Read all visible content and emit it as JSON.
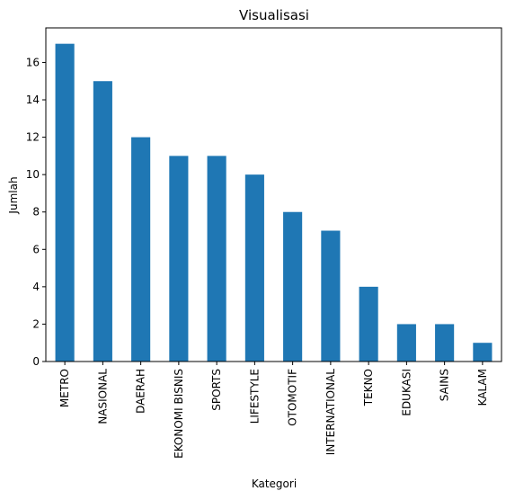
{
  "chart_data": {
    "type": "bar",
    "title": "Visualisasi",
    "xlabel": "Kategori",
    "ylabel": "Jumlah",
    "categories": [
      "METRO",
      "NASIONAL",
      "DAERAH",
      "EKONOMI BISNIS",
      "SPORTS",
      "LIFESTYLE",
      "OTOMOTIF",
      "INTERNATIONAL",
      "TEKNO",
      "EDUKASI",
      "SAINS",
      "KALAM"
    ],
    "values": [
      17,
      15,
      12,
      11,
      11,
      10,
      8,
      7,
      4,
      2,
      2,
      1
    ],
    "ylim": [
      0,
      17.85
    ],
    "yticks": [
      0,
      2,
      4,
      6,
      8,
      10,
      12,
      14,
      16
    ],
    "bar_color": "#1f77b4",
    "grid": false,
    "legend": "none"
  }
}
